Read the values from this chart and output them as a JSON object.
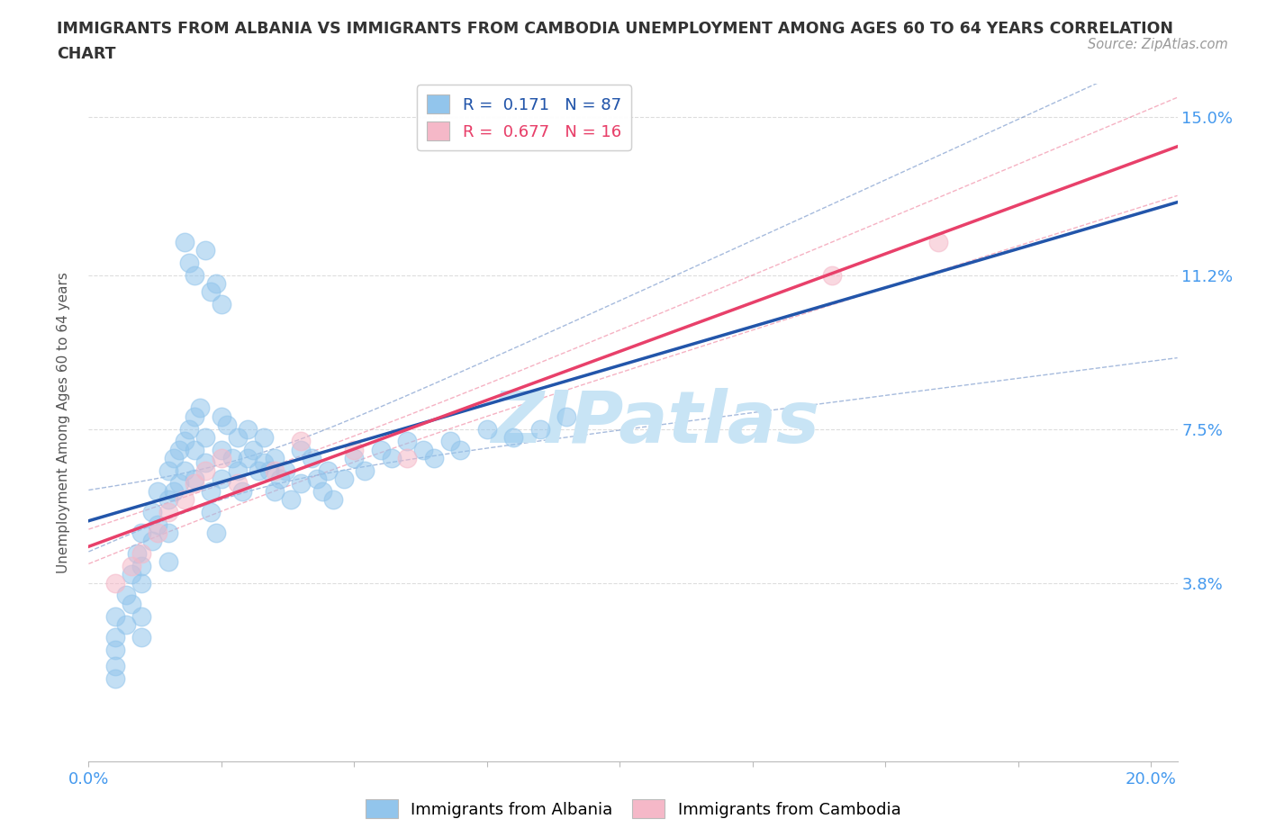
{
  "title_line1": "IMMIGRANTS FROM ALBANIA VS IMMIGRANTS FROM CAMBODIA UNEMPLOYMENT AMONG AGES 60 TO 64 YEARS CORRELATION",
  "title_line2": "CHART",
  "source": "Source: ZipAtlas.com",
  "ylabel": "Unemployment Among Ages 60 to 64 years",
  "xlim": [
    0.0,
    0.205
  ],
  "ylim": [
    -0.005,
    0.158
  ],
  "xtick_vals": [
    0.0,
    0.025,
    0.05,
    0.075,
    0.1,
    0.125,
    0.15,
    0.175,
    0.2
  ],
  "xtick_labels": [
    "0.0%",
    "",
    "",
    "",
    "",
    "",
    "",
    "",
    "20.0%"
  ],
  "ytick_vals": [
    0.038,
    0.075,
    0.112,
    0.15
  ],
  "ytick_labels": [
    "3.8%",
    "7.5%",
    "11.2%",
    "15.0%"
  ],
  "albania_color": "#92C5EC",
  "cambodia_color": "#F5B8C8",
  "albania_line_color": "#2255AA",
  "cambodia_line_color": "#E8406A",
  "albania_R": 0.171,
  "albania_N": 87,
  "cambodia_R": 0.677,
  "cambodia_N": 16,
  "albania_x": [
    0.005,
    0.005,
    0.005,
    0.005,
    0.005,
    0.007,
    0.007,
    0.008,
    0.008,
    0.009,
    0.01,
    0.01,
    0.01,
    0.01,
    0.01,
    0.012,
    0.012,
    0.013,
    0.013,
    0.015,
    0.015,
    0.015,
    0.015,
    0.016,
    0.016,
    0.017,
    0.017,
    0.018,
    0.018,
    0.019,
    0.02,
    0.02,
    0.02,
    0.021,
    0.022,
    0.022,
    0.023,
    0.023,
    0.024,
    0.025,
    0.025,
    0.025,
    0.026,
    0.027,
    0.028,
    0.028,
    0.029,
    0.03,
    0.03,
    0.031,
    0.032,
    0.033,
    0.033,
    0.034,
    0.035,
    0.035,
    0.036,
    0.037,
    0.038,
    0.04,
    0.04,
    0.042,
    0.043,
    0.044,
    0.045,
    0.046,
    0.048,
    0.05,
    0.052,
    0.055,
    0.057,
    0.06,
    0.063,
    0.065,
    0.068,
    0.07,
    0.075,
    0.08,
    0.085,
    0.09,
    0.018,
    0.019,
    0.02,
    0.022,
    0.023,
    0.024,
    0.025
  ],
  "albania_y": [
    0.03,
    0.025,
    0.022,
    0.018,
    0.015,
    0.035,
    0.028,
    0.04,
    0.033,
    0.045,
    0.05,
    0.042,
    0.038,
    0.03,
    0.025,
    0.055,
    0.048,
    0.06,
    0.052,
    0.065,
    0.058,
    0.05,
    0.043,
    0.068,
    0.06,
    0.07,
    0.062,
    0.072,
    0.065,
    0.075,
    0.078,
    0.07,
    0.063,
    0.08,
    0.073,
    0.067,
    0.06,
    0.055,
    0.05,
    0.078,
    0.07,
    0.063,
    0.076,
    0.068,
    0.073,
    0.065,
    0.06,
    0.075,
    0.068,
    0.07,
    0.065,
    0.073,
    0.067,
    0.065,
    0.068,
    0.06,
    0.063,
    0.065,
    0.058,
    0.07,
    0.062,
    0.068,
    0.063,
    0.06,
    0.065,
    0.058,
    0.063,
    0.068,
    0.065,
    0.07,
    0.068,
    0.072,
    0.07,
    0.068,
    0.072,
    0.07,
    0.075,
    0.073,
    0.075,
    0.078,
    0.12,
    0.115,
    0.112,
    0.118,
    0.108,
    0.11,
    0.105
  ],
  "cambodia_x": [
    0.005,
    0.008,
    0.01,
    0.013,
    0.015,
    0.018,
    0.02,
    0.022,
    0.025,
    0.028,
    0.035,
    0.04,
    0.05,
    0.06,
    0.14,
    0.16
  ],
  "cambodia_y": [
    0.038,
    0.042,
    0.045,
    0.05,
    0.055,
    0.058,
    0.062,
    0.065,
    0.068,
    0.062,
    0.065,
    0.072,
    0.07,
    0.068,
    0.112,
    0.12
  ],
  "watermark_text": "ZIPatlas",
  "watermark_color": "#C8E4F5",
  "background_color": "#FFFFFF",
  "grid_color": "#DDDDDD"
}
